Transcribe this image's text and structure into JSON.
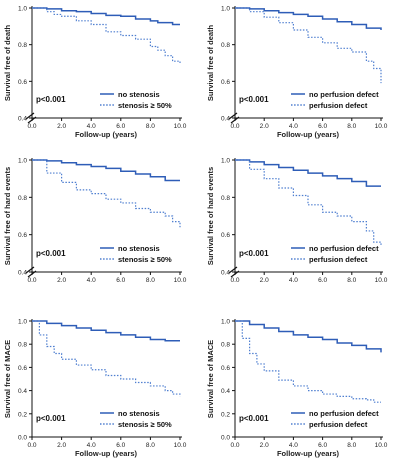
{
  "chart_data": [
    {
      "type": "line",
      "title": "",
      "xlabel": "Follow-up (years)",
      "ylabel": "Survival free of death",
      "xlim": [
        0,
        10
      ],
      "ylim": [
        0.4,
        1.0
      ],
      "xticks": [
        "0.0",
        "2.0",
        "4.0",
        "6.0",
        "8.0",
        "10.0"
      ],
      "yticks": [
        "0.4",
        "0.6",
        "0.8",
        "1.0"
      ],
      "annotation": "p<0.001",
      "legend": "bottom-right",
      "grid": false,
      "series": [
        {
          "name": "no stenosis",
          "style": "solid",
          "color": "#2e5db7",
          "x": [
            0,
            1,
            2,
            3,
            4,
            5,
            6,
            7,
            8,
            8.5,
            9.5,
            10
          ],
          "y": [
            1.0,
            0.995,
            0.985,
            0.98,
            0.97,
            0.96,
            0.955,
            0.94,
            0.93,
            0.92,
            0.91,
            0.91
          ]
        },
        {
          "name": "stenosis ≥ 50%",
          "style": "dotted",
          "color": "#4f7fd0",
          "x": [
            0,
            1,
            1.5,
            2,
            3,
            4,
            5,
            6,
            7,
            8,
            8.5,
            9,
            9.5,
            10
          ],
          "y": [
            1.0,
            0.98,
            0.965,
            0.955,
            0.93,
            0.91,
            0.87,
            0.85,
            0.83,
            0.79,
            0.77,
            0.74,
            0.71,
            0.7
          ]
        }
      ]
    },
    {
      "type": "line",
      "title": "",
      "xlabel": "Follow-up (years)",
      "ylabel": "Survival free of death",
      "xlim": [
        0,
        10
      ],
      "ylim": [
        0.4,
        1.0
      ],
      "xticks": [
        "0.0",
        "2.0",
        "4.0",
        "6.0",
        "8.0",
        "10.0"
      ],
      "yticks": [
        "0.4",
        "0.6",
        "0.8",
        "1.0"
      ],
      "annotation": "p<0.001",
      "legend": "bottom-right",
      "grid": false,
      "series": [
        {
          "name": "no perfusion defect",
          "style": "solid",
          "color": "#2e5db7",
          "x": [
            0,
            1,
            2,
            3,
            4,
            5,
            6,
            7,
            8,
            9,
            10
          ],
          "y": [
            1.0,
            0.995,
            0.985,
            0.975,
            0.965,
            0.955,
            0.94,
            0.925,
            0.91,
            0.89,
            0.88
          ]
        },
        {
          "name": "perfusion defect",
          "style": "dotted",
          "color": "#4f7fd0",
          "x": [
            0,
            1,
            2,
            3,
            4,
            5,
            6,
            7,
            8,
            9,
            9.5,
            10
          ],
          "y": [
            1.0,
            0.98,
            0.95,
            0.92,
            0.88,
            0.84,
            0.81,
            0.78,
            0.76,
            0.71,
            0.67,
            0.59
          ]
        }
      ]
    },
    {
      "type": "line",
      "title": "",
      "xlabel": "",
      "ylabel": "Survival free of hard events",
      "xlim": [
        0,
        10
      ],
      "ylim": [
        0.4,
        1.0
      ],
      "xticks": [
        "0.0",
        "2.0",
        "4.0",
        "6.0",
        "8.0",
        "10.0"
      ],
      "yticks": [
        "0.4",
        "0.6",
        "0.8",
        "1.0"
      ],
      "annotation": "p<0.001",
      "legend": "bottom-right",
      "grid": false,
      "series": [
        {
          "name": "no stenosis",
          "style": "solid",
          "color": "#2e5db7",
          "x": [
            0,
            1,
            2,
            3,
            4,
            5,
            6,
            7,
            8,
            9,
            10
          ],
          "y": [
            1.0,
            0.995,
            0.985,
            0.975,
            0.965,
            0.955,
            0.94,
            0.925,
            0.91,
            0.89,
            0.89
          ]
        },
        {
          "name": "stenosis ≥ 50%",
          "style": "dotted",
          "color": "#4f7fd0",
          "x": [
            0,
            1,
            2,
            3,
            4,
            5,
            6,
            7,
            8,
            9,
            9.5,
            10
          ],
          "y": [
            1.0,
            0.93,
            0.88,
            0.84,
            0.82,
            0.79,
            0.77,
            0.74,
            0.72,
            0.7,
            0.67,
            0.64
          ]
        }
      ]
    },
    {
      "type": "line",
      "title": "",
      "xlabel": "",
      "ylabel": "Survival free of hard events",
      "xlim": [
        0,
        10
      ],
      "ylim": [
        0.4,
        1.0
      ],
      "xticks": [
        "0.0",
        "2.0",
        "4.0",
        "6.0",
        "8.0",
        "10.0"
      ],
      "yticks": [
        "0.4",
        "0.6",
        "0.8",
        "1.0"
      ],
      "annotation": "p<0.001",
      "legend": "bottom-right",
      "grid": false,
      "series": [
        {
          "name": "no perfusion defect",
          "style": "solid",
          "color": "#2e5db7",
          "x": [
            0,
            1,
            2,
            3,
            4,
            5,
            6,
            7,
            8,
            9,
            10
          ],
          "y": [
            1.0,
            0.99,
            0.975,
            0.96,
            0.945,
            0.93,
            0.915,
            0.9,
            0.885,
            0.86,
            0.86
          ]
        },
        {
          "name": "perfusion defect",
          "style": "dotted",
          "color": "#4f7fd0",
          "x": [
            0,
            1,
            2,
            3,
            4,
            5,
            6,
            7,
            8,
            9,
            9.5,
            10
          ],
          "y": [
            1.0,
            0.95,
            0.9,
            0.85,
            0.81,
            0.76,
            0.72,
            0.7,
            0.67,
            0.62,
            0.56,
            0.54
          ]
        }
      ]
    },
    {
      "type": "line",
      "title": "",
      "xlabel": "Follow-up (years)",
      "ylabel": "Survival free of MACE",
      "xlim": [
        0,
        10
      ],
      "ylim": [
        0.0,
        1.0
      ],
      "xticks": [
        "0.0",
        "2.0",
        "4.0",
        "6.0",
        "8.0",
        "10.0"
      ],
      "yticks": [
        "0.0",
        "0.2",
        "0.4",
        "0.6",
        "0.8",
        "1.0"
      ],
      "annotation": "p<0.001",
      "legend": "bottom-right",
      "grid": false,
      "series": [
        {
          "name": "no stenosis",
          "style": "solid",
          "color": "#2e5db7",
          "x": [
            0,
            1,
            2,
            3,
            4,
            5,
            6,
            7,
            8,
            9,
            10
          ],
          "y": [
            1.0,
            0.98,
            0.96,
            0.94,
            0.92,
            0.9,
            0.88,
            0.86,
            0.84,
            0.83,
            0.83
          ]
        },
        {
          "name": "stenosis ≥ 50%",
          "style": "dotted",
          "color": "#4f7fd0",
          "x": [
            0,
            0.5,
            1,
            1.5,
            2,
            3,
            4,
            5,
            6,
            7,
            8,
            9,
            9.5,
            10
          ],
          "y": [
            1.0,
            0.88,
            0.78,
            0.72,
            0.67,
            0.62,
            0.58,
            0.53,
            0.5,
            0.47,
            0.44,
            0.4,
            0.37,
            0.35
          ]
        }
      ]
    },
    {
      "type": "line",
      "title": "",
      "xlabel": "Follow-up (years)",
      "ylabel": "Survival free of MACE",
      "xlim": [
        0,
        10
      ],
      "ylim": [
        0.0,
        1.0
      ],
      "xticks": [
        "0.0",
        "2.0",
        "4.0",
        "6.0",
        "8.0",
        "10.0"
      ],
      "yticks": [
        "0.0",
        "0.2",
        "0.4",
        "0.6",
        "0.8",
        "1.0"
      ],
      "annotation": "p<0.001",
      "legend": "bottom-right",
      "grid": false,
      "series": [
        {
          "name": "no perfusion defect",
          "style": "solid",
          "color": "#2e5db7",
          "x": [
            0,
            1,
            2,
            3,
            4,
            5,
            6,
            7,
            8,
            9,
            10
          ],
          "y": [
            1.0,
            0.97,
            0.94,
            0.91,
            0.88,
            0.86,
            0.84,
            0.81,
            0.79,
            0.76,
            0.73
          ]
        },
        {
          "name": "perfusion defect",
          "style": "dotted",
          "color": "#4f7fd0",
          "x": [
            0,
            0.5,
            1,
            1.5,
            2,
            3,
            4,
            5,
            6,
            7,
            8,
            9,
            9.5,
            10
          ],
          "y": [
            1.0,
            0.85,
            0.72,
            0.63,
            0.57,
            0.49,
            0.44,
            0.4,
            0.37,
            0.35,
            0.33,
            0.32,
            0.3,
            0.3
          ]
        }
      ]
    }
  ]
}
